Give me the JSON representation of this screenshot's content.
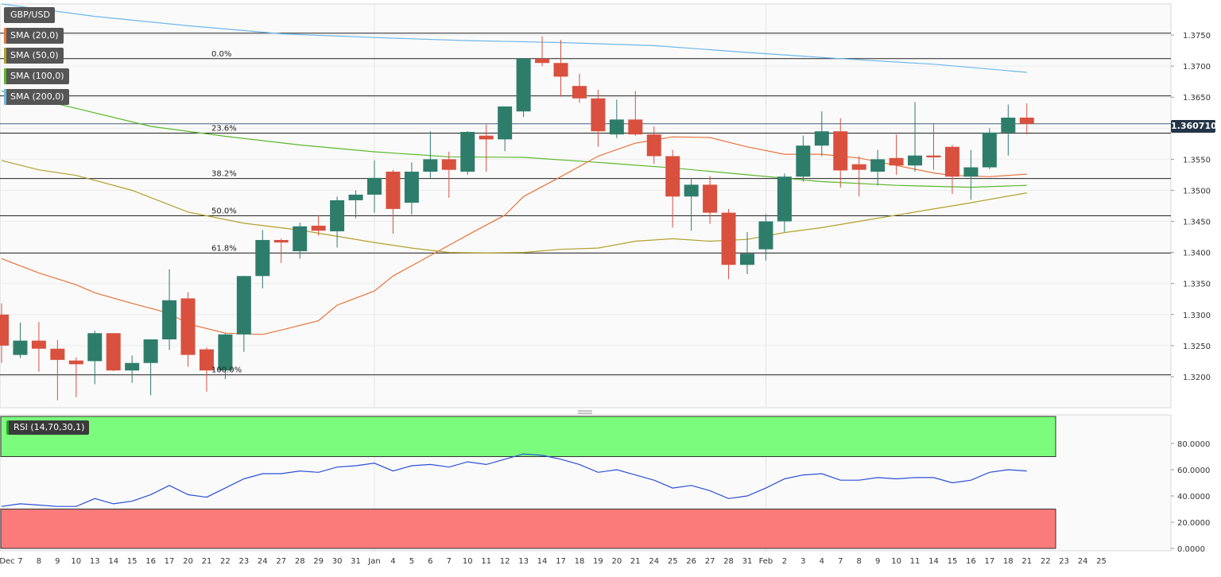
{
  "chart_data": {
    "type": "candlestick",
    "symbol": "GBP/USD",
    "indicators": [
      {
        "name": "SMA (20,0)",
        "color": "#e8743b"
      },
      {
        "name": "SMA (50,0)",
        "color": "#b3a02c"
      },
      {
        "name": "SMA (100,0)",
        "color": "#5cb82c"
      },
      {
        "name": "SMA (200,0)",
        "color": "#6cb8e8"
      }
    ],
    "last_price": "1.360710",
    "ylim": [
      1.315,
      1.38
    ],
    "y_ticks": [
      "1.3750",
      "1.3700",
      "1.3650",
      "1.3600",
      "1.3550",
      "1.3500",
      "1.3450",
      "1.3400",
      "1.3350",
      "1.3300",
      "1.3250",
      "1.3200"
    ],
    "x_ticks": [
      "Dec",
      "7",
      "8",
      "9",
      "10",
      "13",
      "14",
      "15",
      "16",
      "17",
      "20",
      "21",
      "22",
      "23",
      "24",
      "27",
      "28",
      "29",
      "30",
      "31",
      "Jan",
      "4",
      "5",
      "6",
      "7",
      "10",
      "11",
      "12",
      "13",
      "14",
      "17",
      "18",
      "19",
      "20",
      "21",
      "24",
      "25",
      "26",
      "27",
      "28",
      "31",
      "Feb",
      "2",
      "3",
      "4",
      "7",
      "8",
      "9",
      "10",
      "11",
      "14",
      "15",
      "16",
      "17",
      "18",
      "21",
      "22",
      "23",
      "24",
      "25"
    ],
    "horizontal_levels": [
      1.3753,
      1.3712,
      1.3652,
      1.3592,
      1.3519,
      1.3459,
      1.3399,
      1.3203
    ],
    "fibonacci": [
      {
        "label": "0.0%",
        "value": 1.3712
      },
      {
        "label": "23.6%",
        "value": 1.3592
      },
      {
        "label": "38.2%",
        "value": 1.3519
      },
      {
        "label": "50.0%",
        "value": 1.3459
      },
      {
        "label": "61.8%",
        "value": 1.3399
      },
      {
        "label": "100.0%",
        "value": 1.3203
      }
    ],
    "candles": [
      {
        "o": 1.33,
        "h": 1.3318,
        "l": 1.3222,
        "c": 1.325
      },
      {
        "o": 1.3235,
        "h": 1.3287,
        "l": 1.323,
        "c": 1.3258
      },
      {
        "o": 1.3258,
        "h": 1.3288,
        "l": 1.3208,
        "c": 1.3245
      },
      {
        "o": 1.3245,
        "h": 1.3259,
        "l": 1.3162,
        "c": 1.3227
      },
      {
        "o": 1.3226,
        "h": 1.3231,
        "l": 1.3167,
        "c": 1.322
      },
      {
        "o": 1.3225,
        "h": 1.3274,
        "l": 1.3188,
        "c": 1.327
      },
      {
        "o": 1.327,
        "h": 1.327,
        "l": 1.3209,
        "c": 1.321
      },
      {
        "o": 1.321,
        "h": 1.3234,
        "l": 1.319,
        "c": 1.3222
      },
      {
        "o": 1.3222,
        "h": 1.3258,
        "l": 1.317,
        "c": 1.326
      },
      {
        "o": 1.326,
        "h": 1.3373,
        "l": 1.3243,
        "c": 1.3323
      },
      {
        "o": 1.3326,
        "h": 1.3336,
        "l": 1.3216,
        "c": 1.3235
      },
      {
        "o": 1.3244,
        "h": 1.3247,
        "l": 1.3176,
        "c": 1.321
      },
      {
        "o": 1.321,
        "h": 1.327,
        "l": 1.3196,
        "c": 1.3268
      },
      {
        "o": 1.3268,
        "h": 1.3362,
        "l": 1.324,
        "c": 1.3362
      },
      {
        "o": 1.3362,
        "h": 1.3436,
        "l": 1.3342,
        "c": 1.342
      },
      {
        "o": 1.342,
        "h": 1.3422,
        "l": 1.3383,
        "c": 1.3416
      },
      {
        "o": 1.3402,
        "h": 1.3448,
        "l": 1.339,
        "c": 1.3442
      },
      {
        "o": 1.3443,
        "h": 1.346,
        "l": 1.3427,
        "c": 1.3435
      },
      {
        "o": 1.3434,
        "h": 1.349,
        "l": 1.3408,
        "c": 1.3484
      },
      {
        "o": 1.3484,
        "h": 1.35,
        "l": 1.3455,
        "c": 1.3493
      },
      {
        "o": 1.3493,
        "h": 1.3548,
        "l": 1.3464,
        "c": 1.352
      },
      {
        "o": 1.353,
        "h": 1.3533,
        "l": 1.343,
        "c": 1.347
      },
      {
        "o": 1.348,
        "h": 1.3545,
        "l": 1.3461,
        "c": 1.353
      },
      {
        "o": 1.353,
        "h": 1.3595,
        "l": 1.352,
        "c": 1.355
      },
      {
        "o": 1.355,
        "h": 1.3562,
        "l": 1.3488,
        "c": 1.3533
      },
      {
        "o": 1.353,
        "h": 1.3595,
        "l": 1.3525,
        "c": 1.3594
      },
      {
        "o": 1.3588,
        "h": 1.3606,
        "l": 1.353,
        "c": 1.3582
      },
      {
        "o": 1.3582,
        "h": 1.3635,
        "l": 1.3563,
        "c": 1.3635
      },
      {
        "o": 1.3627,
        "h": 1.3712,
        "l": 1.3618,
        "c": 1.3712
      },
      {
        "o": 1.3712,
        "h": 1.3748,
        "l": 1.37,
        "c": 1.3705
      },
      {
        "o": 1.3705,
        "h": 1.3742,
        "l": 1.3651,
        "c": 1.3683
      },
      {
        "o": 1.3668,
        "h": 1.3688,
        "l": 1.3641,
        "c": 1.3648
      },
      {
        "o": 1.3648,
        "h": 1.3662,
        "l": 1.357,
        "c": 1.3595
      },
      {
        "o": 1.359,
        "h": 1.3646,
        "l": 1.3584,
        "c": 1.3614
      },
      {
        "o": 1.3614,
        "h": 1.366,
        "l": 1.3588,
        "c": 1.359
      },
      {
        "o": 1.359,
        "h": 1.3603,
        "l": 1.3543,
        "c": 1.3555
      },
      {
        "o": 1.3555,
        "h": 1.3565,
        "l": 1.344,
        "c": 1.349
      },
      {
        "o": 1.349,
        "h": 1.3518,
        "l": 1.3435,
        "c": 1.3509
      },
      {
        "o": 1.3509,
        "h": 1.3523,
        "l": 1.3446,
        "c": 1.3464
      },
      {
        "o": 1.3464,
        "h": 1.347,
        "l": 1.3357,
        "c": 1.338
      },
      {
        "o": 1.338,
        "h": 1.3433,
        "l": 1.3365,
        "c": 1.3398
      },
      {
        "o": 1.3405,
        "h": 1.3462,
        "l": 1.3387,
        "c": 1.345
      },
      {
        "o": 1.345,
        "h": 1.3527,
        "l": 1.3433,
        "c": 1.3522
      },
      {
        "o": 1.3522,
        "h": 1.3588,
        "l": 1.3514,
        "c": 1.3572
      },
      {
        "o": 1.3572,
        "h": 1.3627,
        "l": 1.3555,
        "c": 1.3595
      },
      {
        "o": 1.3595,
        "h": 1.3616,
        "l": 1.3504,
        "c": 1.3532
      },
      {
        "o": 1.3542,
        "h": 1.3555,
        "l": 1.349,
        "c": 1.3533
      },
      {
        "o": 1.353,
        "h": 1.3565,
        "l": 1.3508,
        "c": 1.355
      },
      {
        "o": 1.3552,
        "h": 1.359,
        "l": 1.3525,
        "c": 1.354
      },
      {
        "o": 1.354,
        "h": 1.3642,
        "l": 1.353,
        "c": 1.3556
      },
      {
        "o": 1.3556,
        "h": 1.3608,
        "l": 1.3533,
        "c": 1.3553
      },
      {
        "o": 1.357,
        "h": 1.3573,
        "l": 1.3494,
        "c": 1.3522
      },
      {
        "o": 1.3522,
        "h": 1.3565,
        "l": 1.3485,
        "c": 1.3537
      },
      {
        "o": 1.3537,
        "h": 1.36,
        "l": 1.3534,
        "c": 1.3593
      },
      {
        "o": 1.3593,
        "h": 1.3638,
        "l": 1.3556,
        "c": 1.3617
      },
      {
        "o": 1.3617,
        "h": 1.364,
        "l": 1.359,
        "c": 1.3607
      }
    ],
    "sma20": [
      1.339,
      1.3367,
      1.3348,
      1.3335,
      1.3318,
      1.3302,
      1.3285,
      1.327,
      1.3268,
      1.3275,
      1.329,
      1.3315,
      1.3338,
      1.3362,
      1.3395,
      1.3428,
      1.346,
      1.349,
      1.3522,
      1.3555,
      1.3576,
      1.3586,
      1.3585,
      1.357,
      1.3558,
      1.3558,
      1.3552,
      1.354,
      1.3528,
      1.3524,
      1.3522,
      1.3526
    ],
    "sma20_start": 0,
    "sma20_x": [
      0,
      2,
      4,
      5,
      7,
      9,
      10,
      12,
      14,
      15,
      17,
      18,
      20,
      21,
      23,
      25,
      27,
      28,
      30,
      32,
      34,
      36,
      38,
      40,
      42,
      44,
      46,
      48,
      50,
      51,
      53,
      55
    ],
    "sma50_x": [
      0,
      2,
      4,
      7,
      10,
      13,
      16,
      20,
      22,
      24,
      26,
      28,
      30,
      32,
      34,
      36,
      38,
      40,
      42,
      44,
      46,
      48,
      50,
      52,
      55
    ],
    "sma50": [
      1.3548,
      1.3533,
      1.3524,
      1.35,
      1.3465,
      1.3447,
      1.3436,
      1.3416,
      1.3407,
      1.34,
      1.3399,
      1.34,
      1.3405,
      1.3407,
      1.3418,
      1.3422,
      1.3418,
      1.3421,
      1.3432,
      1.344,
      1.345,
      1.346,
      1.347,
      1.348,
      1.3496
    ],
    "sma100_x": [
      0,
      4,
      8,
      12,
      16,
      20,
      24,
      28,
      32,
      36,
      40,
      44,
      48,
      52,
      55
    ],
    "sma100": [
      1.366,
      1.3632,
      1.3603,
      1.3587,
      1.3573,
      1.3562,
      1.3554,
      1.3553,
      1.3545,
      1.3536,
      1.3525,
      1.3514,
      1.3508,
      1.3505,
      1.3508
    ],
    "sma200_x": [
      0,
      5,
      10,
      15,
      20,
      25,
      30,
      35,
      40,
      45,
      50,
      55
    ],
    "sma200": [
      1.38,
      1.378,
      1.3765,
      1.3752,
      1.3746,
      1.3741,
      1.3738,
      1.3733,
      1.3722,
      1.3712,
      1.3703,
      1.369
    ],
    "rsi": {
      "label": "RSI (14,70,30,1)",
      "ylim": [
        0,
        100
      ],
      "y_ticks": [
        "80.0000",
        "60.0000",
        "40.0000",
        "20.0000",
        "0.0000"
      ],
      "overbought": 70,
      "oversold": 30,
      "values": [
        32,
        34,
        33,
        32,
        32,
        38,
        34,
        36,
        41,
        48,
        41,
        39,
        46,
        53,
        57,
        57,
        59,
        58,
        62,
        63,
        65,
        59,
        63,
        64,
        62,
        66,
        64,
        68,
        72,
        71,
        68,
        64,
        58,
        60,
        56,
        52,
        46,
        48,
        44,
        38,
        40,
        46,
        53,
        56,
        57,
        52,
        52,
        54,
        53,
        54,
        54,
        50,
        52,
        58,
        60,
        59
      ]
    }
  }
}
